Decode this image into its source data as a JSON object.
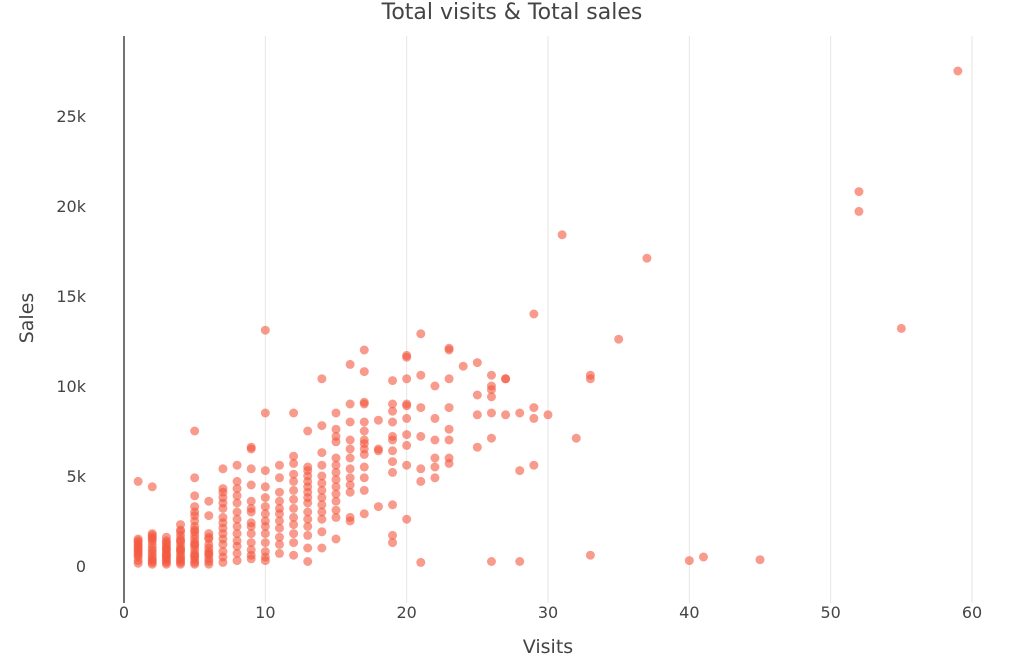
{
  "chart_data": {
    "type": "scatter",
    "title": "Total visits & Total sales",
    "xlabel": "Visits",
    "ylabel": "Sales",
    "xlim": [
      -1,
      61
    ],
    "ylim": [
      -2000,
      29500
    ],
    "x_ticks": [
      0,
      10,
      20,
      30,
      40,
      50,
      60
    ],
    "x_tick_labels": [
      "0",
      "10",
      "20",
      "30",
      "40",
      "50",
      "60"
    ],
    "y_ticks": [
      0,
      5000,
      10000,
      15000,
      20000,
      25000
    ],
    "y_tick_labels": [
      "0",
      "5k",
      "10k",
      "15k",
      "20k",
      "25k"
    ],
    "grid": {
      "x": true,
      "y": false
    },
    "marker_color": "#f4593f",
    "marker_opacity": 0.6,
    "series": [
      {
        "x": [
          1,
          1,
          1,
          1,
          1,
          1,
          1,
          1,
          1,
          1,
          1,
          1,
          1,
          1,
          2,
          2,
          2,
          2,
          2,
          2,
          2,
          2,
          2,
          2,
          2,
          2,
          2,
          2,
          2,
          3,
          3,
          3,
          3,
          3,
          3,
          3,
          3,
          3,
          3,
          3,
          3,
          3,
          3,
          3,
          4,
          4,
          4,
          4,
          4,
          4,
          4,
          4,
          4,
          4,
          4,
          4,
          4,
          4,
          4,
          4,
          4,
          5,
          5,
          5,
          5,
          5,
          5,
          5,
          5,
          5,
          5,
          5,
          5,
          5,
          5,
          5,
          5,
          5,
          5,
          5,
          5,
          5,
          5,
          6,
          6,
          6,
          6,
          6,
          6,
          6,
          6,
          6,
          6,
          6,
          6,
          6,
          7,
          7,
          7,
          7,
          7,
          7,
          7,
          7,
          7,
          7,
          7,
          7,
          7,
          7,
          7,
          8,
          8,
          8,
          8,
          8,
          8,
          8,
          8,
          8,
          8,
          8,
          8,
          8,
          9,
          9,
          9,
          9,
          9,
          9,
          9,
          9,
          9,
          9,
          9,
          9,
          9,
          9,
          10,
          10,
          10,
          10,
          10,
          10,
          10,
          10,
          10,
          10,
          10,
          10,
          10,
          10,
          11,
          11,
          11,
          11,
          11,
          11,
          11,
          11,
          11,
          11,
          11,
          12,
          12,
          12,
          12,
          12,
          12,
          12,
          12,
          12,
          12,
          12,
          12,
          12,
          13,
          13,
          13,
          13,
          13,
          13,
          13,
          13,
          13,
          13,
          13,
          13,
          13,
          13,
          13,
          14,
          14,
          14,
          14,
          14,
          14,
          14,
          14,
          14,
          14,
          14,
          14,
          14,
          15,
          15,
          15,
          15,
          15,
          15,
          15,
          15,
          15,
          15,
          15,
          15,
          15,
          15,
          16,
          16,
          16,
          16,
          16,
          16,
          16,
          16,
          16,
          16,
          16,
          16,
          17,
          17,
          17,
          17,
          17,
          17,
          17,
          17,
          17,
          17,
          17,
          17,
          17,
          17,
          18,
          18,
          18,
          18,
          19,
          19,
          19,
          19,
          19,
          19,
          19,
          19,
          19,
          19,
          19,
          19,
          20,
          20,
          20,
          20,
          20,
          20,
          20,
          20,
          20,
          20,
          21,
          21,
          21,
          21,
          21,
          21,
          21,
          22,
          22,
          22,
          22,
          22,
          22,
          23,
          23,
          23,
          23,
          23,
          23,
          23,
          23,
          24,
          25,
          25,
          25,
          25,
          26,
          26,
          26,
          26,
          26,
          26,
          26,
          27,
          27,
          27,
          28,
          28,
          28,
          29,
          29,
          29,
          29,
          30,
          31,
          32,
          33,
          33,
          33,
          35,
          37,
          40,
          41,
          45,
          52,
          52,
          55,
          59
        ],
        "y": [
          4700,
          1500,
          1400,
          1300,
          1200,
          1100,
          1000,
          900,
          800,
          700,
          600,
          500,
          300,
          150,
          4400,
          1800,
          1600,
          1400,
          1200,
          1000,
          850,
          700,
          550,
          400,
          300,
          200,
          100,
          1700,
          1500,
          1600,
          1400,
          1200,
          1050,
          900,
          750,
          600,
          500,
          400,
          300,
          200,
          100,
          1300,
          950,
          650,
          2300,
          2000,
          1700,
          1500,
          1300,
          1100,
          950,
          800,
          650,
          500,
          400,
          300,
          200,
          100,
          1900,
          1400,
          900,
          7500,
          4900,
          3900,
          3300,
          2800,
          2500,
          2200,
          1900,
          1700,
          1500,
          1300,
          1100,
          900,
          700,
          500,
          350,
          200,
          100,
          3000,
          2000,
          1200,
          600,
          3600,
          2800,
          1800,
          1500,
          1200,
          1000,
          800,
          600,
          400,
          250,
          100,
          1600,
          700,
          5400,
          4300,
          4100,
          3800,
          3500,
          3200,
          2700,
          2400,
          2100,
          1800,
          1500,
          1200,
          800,
          500,
          200,
          5600,
          4700,
          4300,
          3900,
          3500,
          3000,
          2600,
          2200,
          1800,
          1400,
          1100,
          700,
          300,
          6500,
          6600,
          5400,
          4500,
          3600,
          3200,
          3000,
          2400,
          2200,
          1800,
          1300,
          900,
          600,
          400,
          13100,
          8500,
          5300,
          4400,
          3800,
          3300,
          2900,
          2500,
          2200,
          1800,
          1300,
          800,
          500,
          300,
          5600,
          4900,
          4100,
          3600,
          3200,
          2900,
          2500,
          2100,
          1600,
          1200,
          700,
          8500,
          6100,
          5700,
          5100,
          4700,
          4200,
          3700,
          3200,
          2700,
          2300,
          1800,
          1300,
          600,
          7500,
          5500,
          5300,
          5000,
          4700,
          4400,
          4100,
          3800,
          3500,
          3000,
          2600,
          2200,
          1700,
          1000,
          250,
          10400,
          7800,
          6300,
          5600,
          5000,
          4600,
          4200,
          3800,
          3400,
          3000,
          2600,
          1900,
          1000,
          8500,
          7600,
          7200,
          6900,
          6000,
          5600,
          5200,
          4800,
          4400,
          4000,
          3600,
          3100,
          2700,
          1500,
          11200,
          9000,
          8000,
          7000,
          6500,
          6000,
          5400,
          4900,
          4500,
          4100,
          2700,
          2500,
          12000,
          10800,
          9000,
          8000,
          7500,
          7000,
          6800,
          6500,
          6200,
          5500,
          4900,
          4200,
          2900,
          9100,
          8100,
          6500,
          6400,
          3300,
          10300,
          9000,
          8600,
          8000,
          7200,
          7000,
          6400,
          5800,
          5200,
          3400,
          1700,
          1300,
          11600,
          11700,
          10400,
          9000,
          8900,
          8200,
          7300,
          6700,
          5600,
          2600,
          12900,
          10600,
          8800,
          7200,
          5400,
          4700,
          200,
          10000,
          8200,
          7000,
          6000,
          5500,
          4900,
          12000,
          12100,
          10400,
          8800,
          7600,
          7000,
          6000,
          5700,
          11100,
          11300,
          9500,
          8400,
          6600,
          10600,
          9800,
          9400,
          8500,
          7100,
          250,
          10000,
          10400,
          10400,
          8400,
          8500,
          5300,
          250,
          14000,
          8800,
          8200,
          5600,
          8400,
          18400,
          7100,
          10400,
          10600,
          600,
          12600,
          17100,
          300,
          500,
          350,
          20800,
          19700,
          13200,
          27500
        ]
      }
    ]
  }
}
